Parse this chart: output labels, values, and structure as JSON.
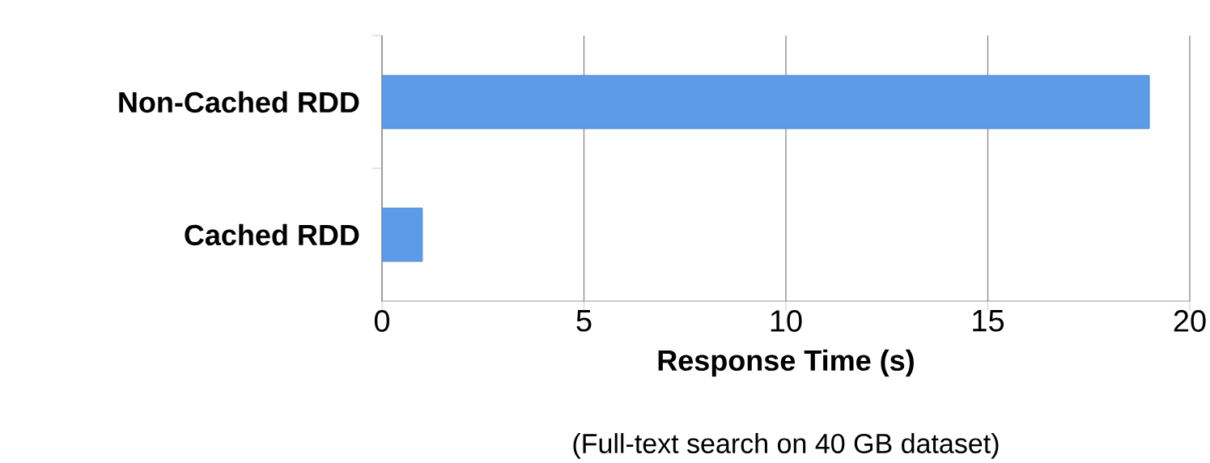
{
  "chart_data": {
    "type": "bar",
    "orientation": "horizontal",
    "categories": [
      "Non-Cached RDD",
      "Cached RDD"
    ],
    "values": [
      19,
      1
    ],
    "color": "#5b9be8",
    "xlim": [
      0,
      20
    ],
    "xticks": [
      0,
      5,
      10,
      15,
      20
    ],
    "grid": "x",
    "xlabel": "Response Time (s)",
    "annotations": [
      "(Full-text search on 40 GB dataset)"
    ]
  }
}
